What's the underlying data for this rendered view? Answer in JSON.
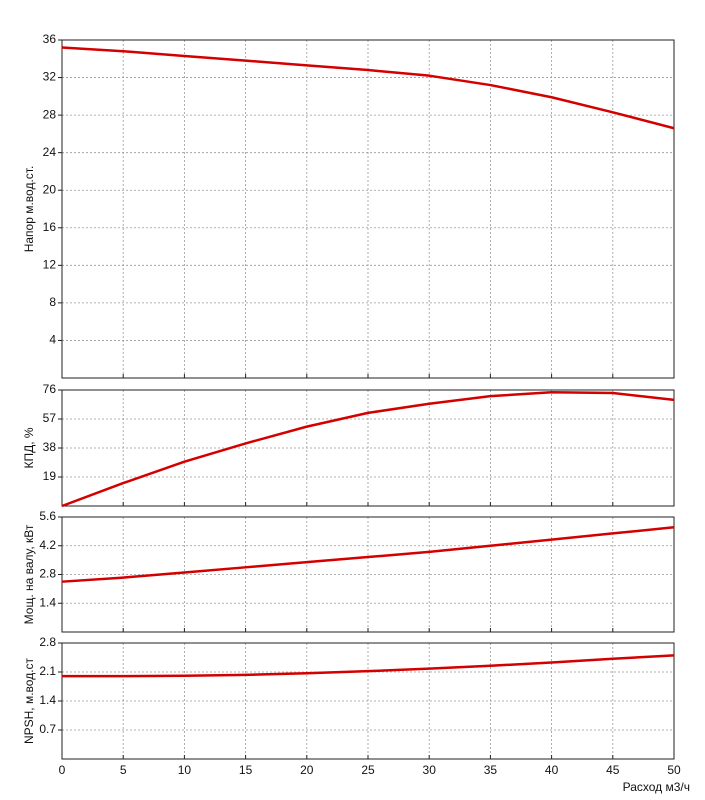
{
  "chart_data": [
    {
      "type": "line",
      "ylabel": "Напор м.вод.ст.",
      "x": [
        0,
        5,
        10,
        15,
        20,
        25,
        30,
        35,
        40,
        45,
        50
      ],
      "series": [
        {
          "color": "#d40000",
          "values": [
            35.2,
            34.8,
            34.3,
            33.8,
            33.3,
            32.8,
            32.2,
            31.2,
            29.9,
            28.3,
            26.6
          ]
        }
      ],
      "xlim": [
        0,
        50
      ],
      "xticks": [
        0,
        5,
        10,
        15,
        20,
        25,
        30,
        35,
        40,
        45,
        50
      ],
      "ylim": [
        0,
        36
      ],
      "yticks": [
        4,
        8,
        12,
        16,
        20,
        24,
        28,
        32,
        36
      ],
      "grid": true
    },
    {
      "type": "line",
      "ylabel": "КПД, %",
      "x": [
        0,
        5,
        10,
        15,
        20,
        25,
        30,
        35,
        40,
        45,
        50
      ],
      "series": [
        {
          "color": "#d40000",
          "values": [
            0,
            15,
            29,
            41,
            52,
            61,
            67,
            72,
            74.5,
            74,
            69.5
          ]
        }
      ],
      "xlim": [
        0,
        50
      ],
      "xticks": [
        0,
        5,
        10,
        15,
        20,
        25,
        30,
        35,
        40,
        45,
        50
      ],
      "ylim": [
        0,
        76
      ],
      "yticks": [
        19,
        38,
        57,
        76
      ],
      "grid": true
    },
    {
      "type": "line",
      "ylabel": "Мощ. на валу, кВт",
      "x": [
        0,
        5,
        10,
        15,
        20,
        25,
        30,
        35,
        40,
        45,
        50
      ],
      "series": [
        {
          "color": "#d40000",
          "values": [
            2.45,
            2.65,
            2.9,
            3.15,
            3.4,
            3.65,
            3.9,
            4.2,
            4.5,
            4.8,
            5.1
          ]
        }
      ],
      "xlim": [
        0,
        50
      ],
      "xticks": [
        0,
        5,
        10,
        15,
        20,
        25,
        30,
        35,
        40,
        45,
        50
      ],
      "ylim": [
        0,
        5.6
      ],
      "yticks": [
        1.4,
        2.8,
        4.2,
        5.6
      ],
      "grid": true
    },
    {
      "type": "line",
      "ylabel": "NPSH, м.вод.ст",
      "xlabel": "Расход м3/ч",
      "x": [
        0,
        5,
        10,
        15,
        20,
        25,
        30,
        35,
        40,
        45,
        50
      ],
      "series": [
        {
          "color": "#d40000",
          "values": [
            2.0,
            2.0,
            2.01,
            2.03,
            2.07,
            2.12,
            2.18,
            2.25,
            2.33,
            2.42,
            2.5
          ]
        }
      ],
      "xlim": [
        0,
        50
      ],
      "xticks": [
        0,
        5,
        10,
        15,
        20,
        25,
        30,
        35,
        40,
        45,
        50
      ],
      "ylim": [
        0,
        2.8
      ],
      "yticks": [
        0.7,
        1.4,
        2.1,
        2.8
      ],
      "grid": true
    }
  ]
}
